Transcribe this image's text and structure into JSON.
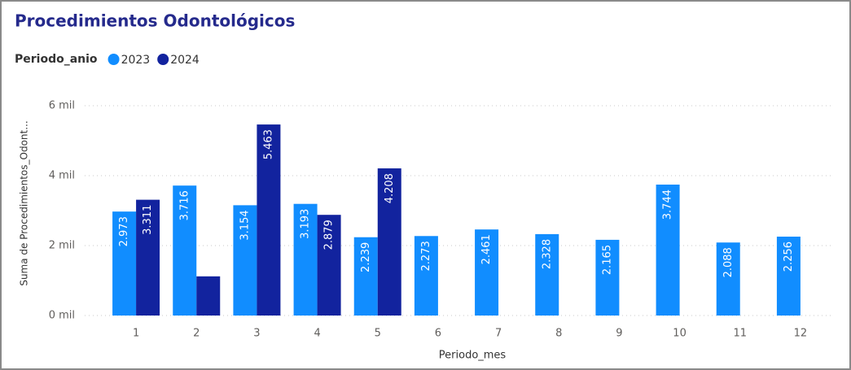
{
  "chart_data": {
    "type": "bar",
    "title": "Procedimientos Odontológicos",
    "legend_title": "Periodo_anio",
    "x_label": "Periodo_mes",
    "y_label": "Suma de Procedimientos_Odont...",
    "categories": [
      "1",
      "2",
      "3",
      "4",
      "5",
      "6",
      "7",
      "8",
      "9",
      "10",
      "11",
      "12"
    ],
    "series": [
      {
        "name": "2023",
        "color": "#118dff",
        "values": [
          2973,
          3716,
          3154,
          3193,
          2239,
          2273,
          2461,
          2328,
          2165,
          3744,
          2088,
          2256
        ],
        "value_labels": [
          "2.973",
          "3.716",
          "3.154",
          "3.193",
          "2.239",
          "2.273",
          "2.461",
          "2.328",
          "2.165",
          "3.744",
          "2.088",
          "2.256"
        ]
      },
      {
        "name": "2024",
        "color": "#12239e",
        "values": [
          3311,
          1120,
          5463,
          2879,
          4208,
          null,
          null,
          null,
          null,
          null,
          null,
          null
        ],
        "value_labels": [
          "3.311",
          null,
          "5.463",
          "2.879",
          "4.208",
          null,
          null,
          null,
          null,
          null,
          null,
          null
        ]
      }
    ],
    "ylim": [
      0,
      6000
    ],
    "yticks": [
      {
        "value": 0,
        "label": "0 mil"
      },
      {
        "value": 2000,
        "label": "2 mil"
      },
      {
        "value": 4000,
        "label": "4 mil"
      },
      {
        "value": 6000,
        "label": "6 mil"
      }
    ],
    "grid": true
  }
}
